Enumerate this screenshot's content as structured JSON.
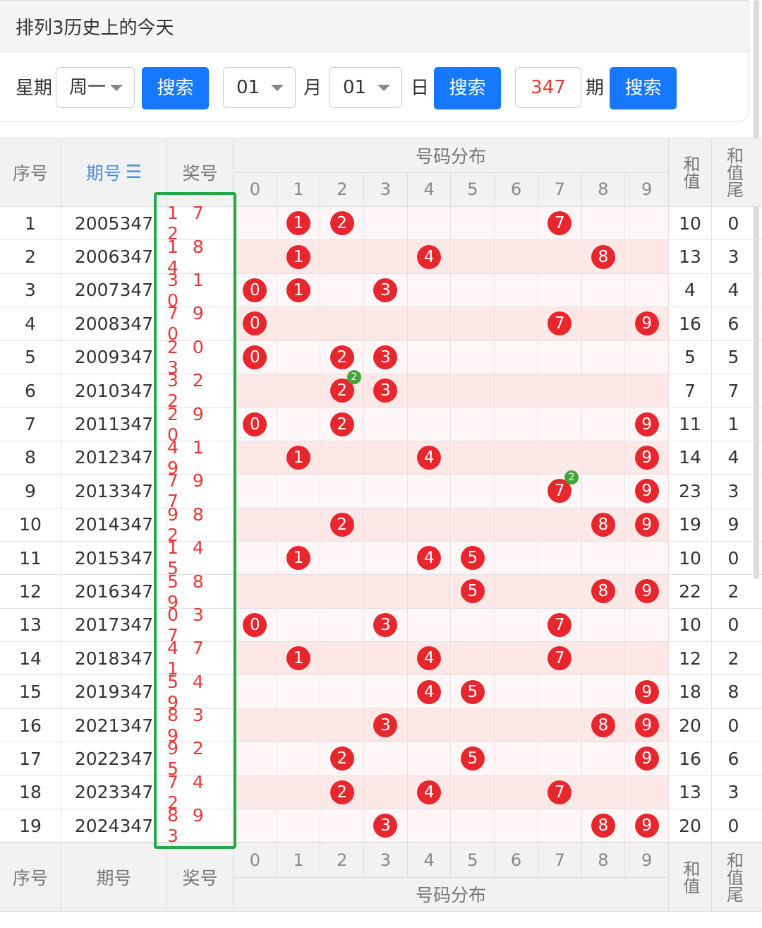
{
  "title": "排列3历史上的今天",
  "search": {
    "weekday_label": "星期",
    "weekday_value": "周一",
    "search_label": "搜索",
    "month_value": "01",
    "month_label": "月",
    "day_value": "01",
    "day_label": "日",
    "issue_value": "347",
    "issue_label": "期"
  },
  "table": {
    "headers": {
      "seq": "序号",
      "issue": "期号",
      "sort_icon": "sort-icon",
      "prize": "奖号",
      "distribution": "号码分布",
      "sum": "和值",
      "tail": "和值尾"
    },
    "digits": [
      "0",
      "1",
      "2",
      "3",
      "4",
      "5",
      "6",
      "7",
      "8",
      "9"
    ],
    "rows": [
      {
        "seq": "1",
        "issue": "2005347",
        "prize": "1 7 2",
        "balls": [
          1,
          2,
          7
        ],
        "rep": [],
        "sum": "10",
        "tail": "0"
      },
      {
        "seq": "2",
        "issue": "2006347",
        "prize": "1 8 4",
        "balls": [
          1,
          4,
          8
        ],
        "rep": [],
        "sum": "13",
        "tail": "3"
      },
      {
        "seq": "3",
        "issue": "2007347",
        "prize": "3 1 0",
        "balls": [
          0,
          1,
          3
        ],
        "rep": [],
        "sum": "4",
        "tail": "4"
      },
      {
        "seq": "4",
        "issue": "2008347",
        "prize": "7 9 0",
        "balls": [
          0,
          7,
          9
        ],
        "rep": [],
        "sum": "16",
        "tail": "6"
      },
      {
        "seq": "5",
        "issue": "2009347",
        "prize": "2 0 3",
        "balls": [
          0,
          2,
          3
        ],
        "rep": [],
        "sum": "5",
        "tail": "5"
      },
      {
        "seq": "6",
        "issue": "2010347",
        "prize": "3 2 2",
        "balls": [
          2,
          3
        ],
        "rep": [
          {
            "digit": 2,
            "count": "2"
          }
        ],
        "sum": "7",
        "tail": "7"
      },
      {
        "seq": "7",
        "issue": "2011347",
        "prize": "2 9 0",
        "balls": [
          0,
          2,
          9
        ],
        "rep": [],
        "sum": "11",
        "tail": "1"
      },
      {
        "seq": "8",
        "issue": "2012347",
        "prize": "4 1 9",
        "balls": [
          1,
          4,
          9
        ],
        "rep": [],
        "sum": "14",
        "tail": "4"
      },
      {
        "seq": "9",
        "issue": "2013347",
        "prize": "7 9 7",
        "balls": [
          7,
          9
        ],
        "rep": [
          {
            "digit": 7,
            "count": "2"
          }
        ],
        "sum": "23",
        "tail": "3"
      },
      {
        "seq": "10",
        "issue": "2014347",
        "prize": "9 8 2",
        "balls": [
          2,
          8,
          9
        ],
        "rep": [],
        "sum": "19",
        "tail": "9"
      },
      {
        "seq": "11",
        "issue": "2015347",
        "prize": "1 4 5",
        "balls": [
          1,
          4,
          5
        ],
        "rep": [],
        "sum": "10",
        "tail": "0"
      },
      {
        "seq": "12",
        "issue": "2016347",
        "prize": "5 8 9",
        "balls": [
          5,
          8,
          9
        ],
        "rep": [],
        "sum": "22",
        "tail": "2"
      },
      {
        "seq": "13",
        "issue": "2017347",
        "prize": "0 3 7",
        "balls": [
          0,
          3,
          7
        ],
        "rep": [],
        "sum": "10",
        "tail": "0"
      },
      {
        "seq": "14",
        "issue": "2018347",
        "prize": "4 7 1",
        "balls": [
          1,
          4,
          7
        ],
        "rep": [],
        "sum": "12",
        "tail": "2"
      },
      {
        "seq": "15",
        "issue": "2019347",
        "prize": "5 4 9",
        "balls": [
          4,
          5,
          9
        ],
        "rep": [],
        "sum": "18",
        "tail": "8"
      },
      {
        "seq": "16",
        "issue": "2021347",
        "prize": "8 3 9",
        "balls": [
          3,
          8,
          9
        ],
        "rep": [],
        "sum": "20",
        "tail": "0"
      },
      {
        "seq": "17",
        "issue": "2022347",
        "prize": "9 2 5",
        "balls": [
          2,
          5,
          9
        ],
        "rep": [],
        "sum": "16",
        "tail": "6"
      },
      {
        "seq": "18",
        "issue": "2023347",
        "prize": "7 4 2",
        "balls": [
          2,
          4,
          7
        ],
        "rep": [],
        "sum": "13",
        "tail": "3"
      },
      {
        "seq": "19",
        "issue": "2024347",
        "prize": "8 9 3",
        "balls": [
          3,
          8,
          9
        ],
        "rep": [],
        "sum": "20",
        "tail": "0"
      }
    ]
  },
  "colors": {
    "accent": "#1677ff",
    "ball": "#e8262d",
    "repeat_badge": "#43a634",
    "highlight_box": "#27a844",
    "prize_text": "#e53935"
  }
}
